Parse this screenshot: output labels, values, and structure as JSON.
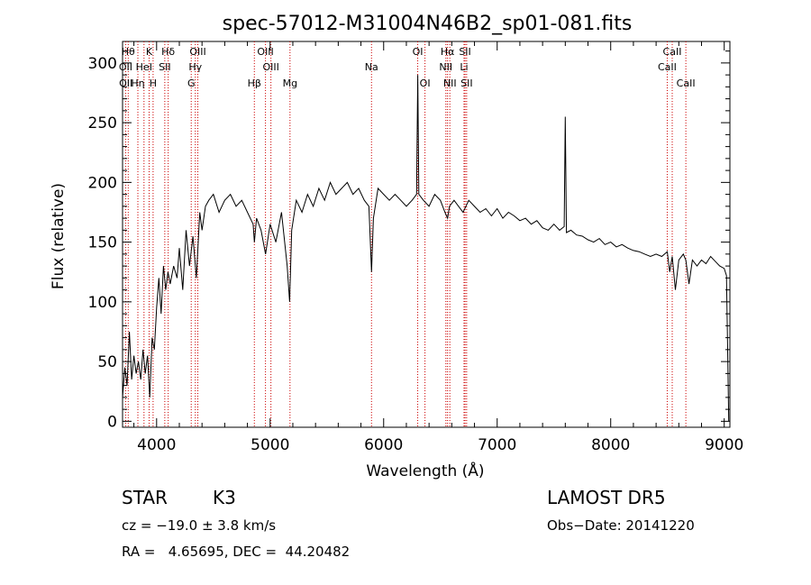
{
  "chart_data": {
    "type": "line",
    "title": "spec-57012-M31004N46B2_sp01-081.fits",
    "xlabel": "Wavelength (Å)",
    "ylabel": "Flux (relative)",
    "xlim": [
      3700,
      9050
    ],
    "ylim": [
      -5,
      318
    ],
    "xticks": [
      4000,
      5000,
      6000,
      7000,
      8000,
      9000
    ],
    "yticks": [
      0,
      50,
      100,
      150,
      200,
      250,
      300
    ],
    "grid": false,
    "line_color": "#000000",
    "line_marker_color": "#cc0000",
    "series": [
      {
        "x": [
          3700,
          3720,
          3740,
          3760,
          3780,
          3800,
          3820,
          3840,
          3860,
          3880,
          3900,
          3920,
          3940,
          3960,
          3980,
          4000,
          4020,
          4040,
          4060,
          4080,
          4100,
          4120,
          4150,
          4180,
          4200,
          4230,
          4260,
          4290,
          4320,
          4350,
          4380,
          4400,
          4430,
          4460,
          4500,
          4550,
          4600,
          4650,
          4700,
          4750,
          4800,
          4850,
          4861,
          4880,
          4920,
          4960,
          5000,
          5050,
          5100,
          5150,
          5172,
          5190,
          5230,
          5280,
          5330,
          5380,
          5430,
          5480,
          5530,
          5580,
          5630,
          5680,
          5730,
          5780,
          5830,
          5870,
          5893,
          5910,
          5950,
          6000,
          6050,
          6100,
          6150,
          6200,
          6250,
          6290,
          6300,
          6310,
          6350,
          6400,
          6450,
          6500,
          6540,
          6563,
          6580,
          6620,
          6660,
          6700,
          6750,
          6800,
          6850,
          6900,
          6950,
          7000,
          7050,
          7100,
          7150,
          7200,
          7250,
          7300,
          7350,
          7400,
          7450,
          7500,
          7550,
          7590,
          7600,
          7610,
          7650,
          7700,
          7750,
          7800,
          7850,
          7900,
          7950,
          8000,
          8050,
          8100,
          8150,
          8200,
          8250,
          8300,
          8350,
          8400,
          8450,
          8498,
          8520,
          8542,
          8570,
          8600,
          8640,
          8662,
          8690,
          8720,
          8760,
          8800,
          8840,
          8880,
          8920,
          8960,
          9000,
          9020,
          9030,
          9040
        ],
        "y": [
          20,
          45,
          30,
          75,
          35,
          55,
          40,
          50,
          35,
          60,
          40,
          55,
          20,
          70,
          60,
          95,
          120,
          90,
          130,
          110,
          125,
          115,
          130,
          120,
          145,
          110,
          160,
          130,
          155,
          120,
          175,
          160,
          180,
          185,
          190,
          175,
          185,
          190,
          180,
          185,
          175,
          165,
          150,
          170,
          160,
          140,
          165,
          150,
          175,
          130,
          100,
          160,
          185,
          175,
          190,
          180,
          195,
          185,
          200,
          190,
          195,
          200,
          190,
          195,
          185,
          180,
          125,
          170,
          195,
          190,
          185,
          190,
          185,
          180,
          185,
          190,
          290,
          190,
          185,
          180,
          190,
          185,
          175,
          170,
          180,
          185,
          180,
          175,
          185,
          180,
          175,
          178,
          172,
          178,
          170,
          175,
          172,
          168,
          170,
          165,
          168,
          162,
          160,
          165,
          160,
          163,
          255,
          158,
          160,
          156,
          155,
          152,
          150,
          153,
          148,
          150,
          146,
          148,
          145,
          143,
          142,
          140,
          138,
          140,
          138,
          142,
          125,
          138,
          110,
          135,
          140,
          135,
          115,
          135,
          130,
          135,
          132,
          138,
          134,
          130,
          128,
          122,
          60,
          0
        ]
      }
    ],
    "line_labels": [
      {
        "text": "Hθ",
        "x": 3750,
        "row": 0
      },
      {
        "text": "K",
        "x": 3934,
        "row": 0
      },
      {
        "text": "Hδ",
        "x": 4102,
        "row": 0
      },
      {
        "text": "OIII",
        "x": 4363,
        "row": 0
      },
      {
        "text": "OIII",
        "x": 4959,
        "row": 0
      },
      {
        "text": "OI",
        "x": 6300,
        "row": 0
      },
      {
        "text": "Hα",
        "x": 6563,
        "row": 0
      },
      {
        "text": "SII",
        "x": 6717,
        "row": 0
      },
      {
        "text": "CaII",
        "x": 8542,
        "row": 0
      },
      {
        "text": "OII",
        "x": 3727,
        "row": 1
      },
      {
        "text": "HeI",
        "x": 3889,
        "row": 1
      },
      {
        "text": "SII",
        "x": 4072,
        "row": 1
      },
      {
        "text": "Hγ",
        "x": 4341,
        "row": 1
      },
      {
        "text": "OIII",
        "x": 5007,
        "row": 1
      },
      {
        "text": "Na",
        "x": 5893,
        "row": 1
      },
      {
        "text": "NII",
        "x": 6548,
        "row": 1
      },
      {
        "text": "Li",
        "x": 6708,
        "row": 1
      },
      {
        "text": "CaII",
        "x": 8498,
        "row": 1
      },
      {
        "text": "OII",
        "x": 3729,
        "row": 2
      },
      {
        "text": "Hη",
        "x": 3835,
        "row": 2
      },
      {
        "text": "H",
        "x": 3969,
        "row": 2
      },
      {
        "text": "G",
        "x": 4305,
        "row": 2
      },
      {
        "text": "Hβ",
        "x": 4861,
        "row": 2
      },
      {
        "text": "Mg",
        "x": 5175,
        "row": 2
      },
      {
        "text": "OI",
        "x": 6364,
        "row": 2
      },
      {
        "text": "NII",
        "x": 6583,
        "row": 2
      },
      {
        "text": "SII",
        "x": 6731,
        "row": 2
      },
      {
        "text": "CaII",
        "x": 8662,
        "row": 2
      }
    ],
    "line_markers": [
      3727,
      3750,
      3835,
      3889,
      3934,
      3969,
      4072,
      4102,
      4305,
      4341,
      4363,
      4861,
      4959,
      5007,
      5175,
      5893,
      6300,
      6364,
      6548,
      6563,
      6583,
      6708,
      6717,
      6731,
      8498,
      8542,
      8662
    ]
  },
  "info": {
    "object_class": "STAR",
    "subclass": "K3",
    "survey": "LAMOST DR5",
    "cz": "cz = −19.0 ± 3.8 km/s",
    "obs_date": "Obs−Date: 20141220",
    "coords": "RA =   4.65695, DEC =  44.20482"
  }
}
